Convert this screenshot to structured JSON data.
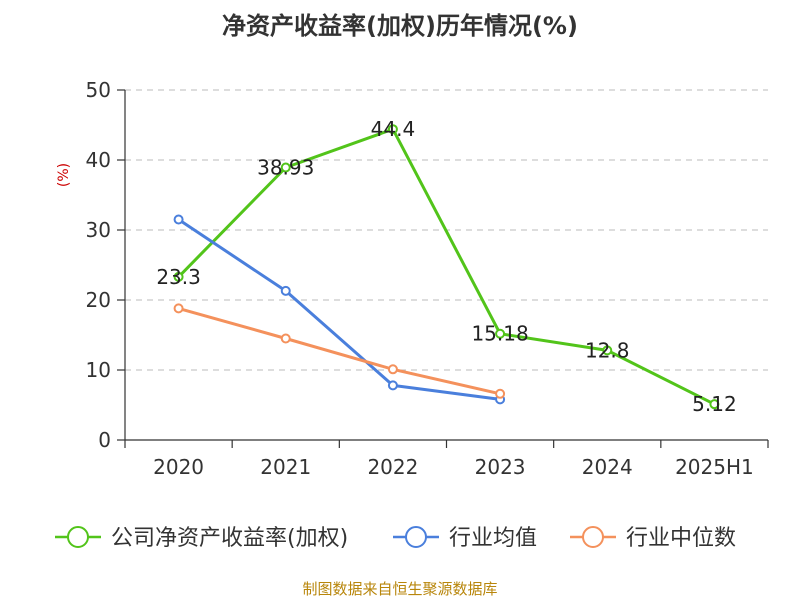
{
  "chart_data": {
    "type": "line",
    "title": "净资产收益率(加权)历年情况(%)",
    "ylabel": "(%)",
    "xlabel": "",
    "ylim": [
      0,
      50
    ],
    "yticks": [
      0,
      10,
      20,
      30,
      40,
      50
    ],
    "categories": [
      "2020",
      "2021",
      "2022",
      "2023",
      "2024",
      "2025H1"
    ],
    "grid": true,
    "legend_position": "bottom",
    "series": [
      {
        "name": "公司净资产收益率(加权)",
        "color": "#52c41a",
        "values": [
          23.3,
          38.93,
          44.4,
          15.18,
          12.8,
          5.12
        ],
        "labels": [
          "23.3",
          "38.93",
          "44.4",
          "15.18",
          "12.8",
          "5.12"
        ]
      },
      {
        "name": "行业均值",
        "color": "#4a7fdc",
        "values": [
          31.5,
          21.3,
          7.8,
          5.8,
          null,
          null
        ]
      },
      {
        "name": "行业中位数",
        "color": "#f4915c",
        "values": [
          18.8,
          14.5,
          10.1,
          6.6,
          null,
          null
        ]
      }
    ]
  },
  "source_text": "制图数据来自恒生聚源数据库"
}
